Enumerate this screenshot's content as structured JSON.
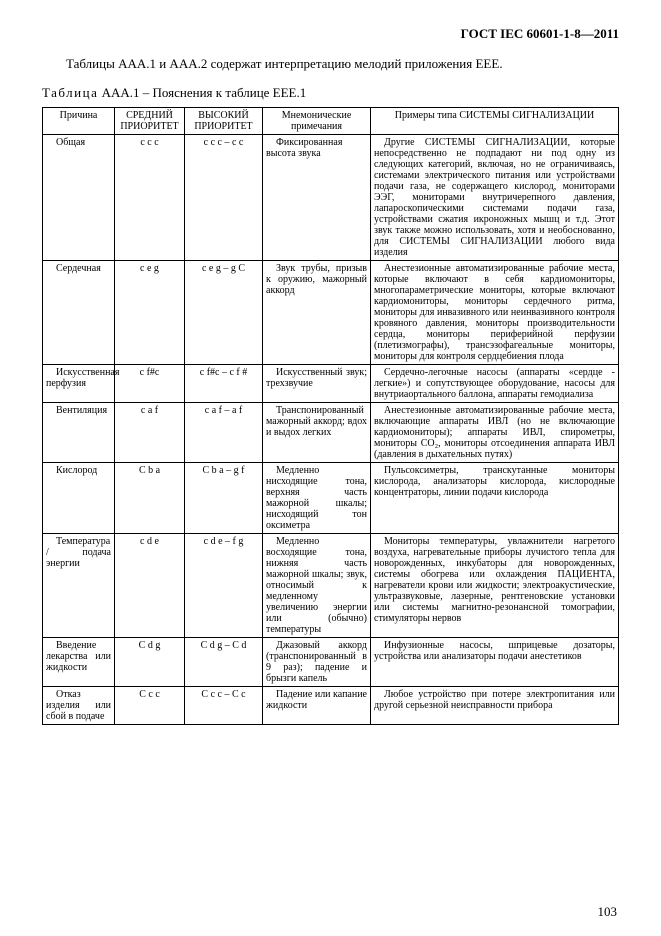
{
  "doc_id": "ГОСТ IEC 60601-1-8—2011",
  "intro": "Таблицы AAA.1 и AAA.2 содержат интерпретацию мелодий приложения EEE.",
  "caption_prefix": "Таблица",
  "caption_rest": " AAA.1 – Пояснения к таблице EEE.1",
  "headers": {
    "cause": "Причина",
    "medium": "СРЕДНИЙ ПРИОРИТЕТ",
    "high": "ВЫСОКИЙ ПРИОРИТЕТ",
    "mnemo": "Мнемонические примечания",
    "example": "Примеры типа СИСТЕМЫ СИГНАЛИЗАЦИИ"
  },
  "rows": [
    {
      "cause": "Общая",
      "medium": "c c c",
      "high": "c c c – c c",
      "mnemo": "Фиксированная высота звука",
      "example": "Другие СИСТЕМЫ СИГНАЛИЗАЦИИ, которые непосредственно не подпадают ни под одну из следующих категорий, включая, но не ограничиваясь, системами электрического питания или устройствами подачи газа, не содержащего кислород, мониторами ЭЭГ, мониторами внутричерепного давления, лапароскопическими системами подачи газа, устройствами сжатия икроножных мышц и т.д. Этот звук также можно использовать, хотя и необоснованно, для СИСТЕМЫ СИГНАЛИЗАЦИИ любого вида изделия"
    },
    {
      "cause": "Сердечная",
      "medium": "c e g",
      "high": "c e g – g C",
      "mnemo": "Звук трубы, призыв к оружию, мажорный аккорд",
      "example": "Анестезионные автоматизированные рабочие места, которые включают в себя кардиомониторы, многопараметрические мониторы, которые включают кардиомониторы, мониторы сердечного ритма, мониторы для инвазивного или неинвазивного контроля кровяного давления, мониторы производительности сердца, мониторы периферийной перфузии (плетизмографы), трансэзофагеальные мониторы, мониторы для контроля сердцебиения плода"
    },
    {
      "cause": "Искусственная перфузия",
      "medium": "c f#c",
      "high": "c f#c – c f #",
      "mnemo": "Искусственный звук; трехзвучие",
      "example": "Сердечно-легочные насосы (аппараты «сердце - легкие») и сопутствующее оборудование, насосы для внутриаортального баллона, аппараты гемодиализа"
    },
    {
      "cause": "Вентиляция",
      "medium": "c a f",
      "high": "c a f – a f",
      "mnemo": "Транспонированный мажорный аккорд; вдох и выдох легких",
      "example": "Анестезионные автоматизированные рабочие места, включающие аппараты ИВЛ (но не включающие кардиомониторы); аппараты ИВЛ, спирометры, мониторы CO₂, мониторы отсоединения аппарата ИВЛ (давления в дыхательных путях)"
    },
    {
      "cause": "Кислород",
      "medium": "C b a",
      "high": "C b a – g f",
      "mnemo": "Медленно нисходящие тона, верхняя часть мажорной шкалы; нисходящий тон оксиметра",
      "example": "Пульсоксиметры, транскутанные мониторы кислорода, анализаторы кислорода, кислородные концентраторы, линии подачи кислорода"
    },
    {
      "cause": "Температура / подача энергии",
      "medium": "c d e",
      "high": "c d e – f g",
      "mnemo": "Медленно восходящие тона, нижняя часть мажорной шкалы; звук, относимый к медленному увеличению энергии или (обычно) температуры",
      "example": "Мониторы температуры, увлажнители нагретого воздуха, нагревательные приборы лучистого тепла для новорожденных, инкубаторы для новорожденных, системы обогрева или охлаждения ПАЦИЕНТА, нагреватели крови или жидкости; электроакустические, ультразвуковые, лазерные, рентгеновские установки или системы магнитно-резонансной томографии, стимуляторы нервов"
    },
    {
      "cause": "Введение лекарства или жидкости",
      "medium": "C d g",
      "high": "C d g – C d",
      "mnemo": "Джазовый аккорд (транспонированный в 9 раз); падение и брызги капель",
      "example": "Инфузионные насосы, шприцевые дозаторы, устройства или анализаторы подачи анестетиков"
    },
    {
      "cause": "Отказ изделия или сбой в подаче",
      "medium": "C c c",
      "high": "C c c – C c",
      "mnemo": "Падение или капание жидкости",
      "example": "Любое устройство при потере электропитания или другой серьезной неисправности прибора"
    }
  ],
  "page_number": "103"
}
